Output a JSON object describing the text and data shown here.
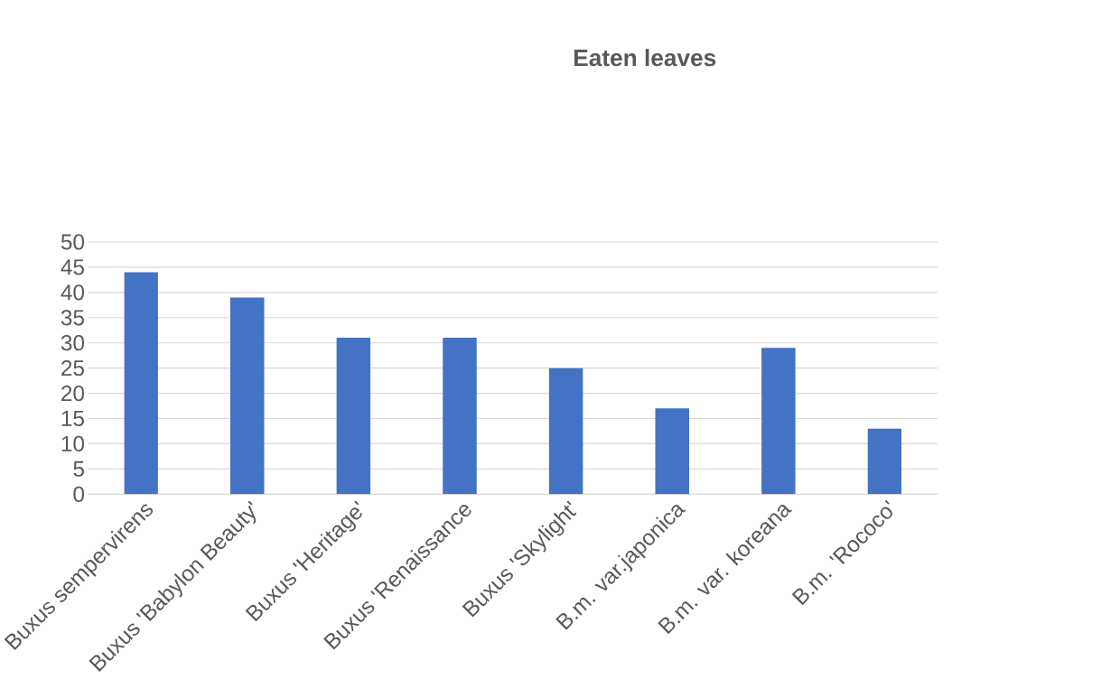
{
  "chart_data": {
    "type": "bar",
    "title": "Eaten leaves",
    "categories": [
      "Buxus sempervirens",
      "Buxus 'Babylon Beauty'",
      "Buxus 'Heritage'",
      "Buxus 'Renaissance",
      "Buxus 'Skylight'",
      "B.m. var.japonica",
      "B.m. var. koreana",
      "B.m. 'Rococo'"
    ],
    "values": [
      44,
      39,
      31,
      31,
      25,
      17,
      29,
      13
    ],
    "color": "#4472c4",
    "ylim": [
      0,
      50
    ],
    "yticks": [
      0,
      5,
      10,
      15,
      20,
      25,
      30,
      35,
      40,
      45,
      50
    ],
    "grid": "y"
  }
}
